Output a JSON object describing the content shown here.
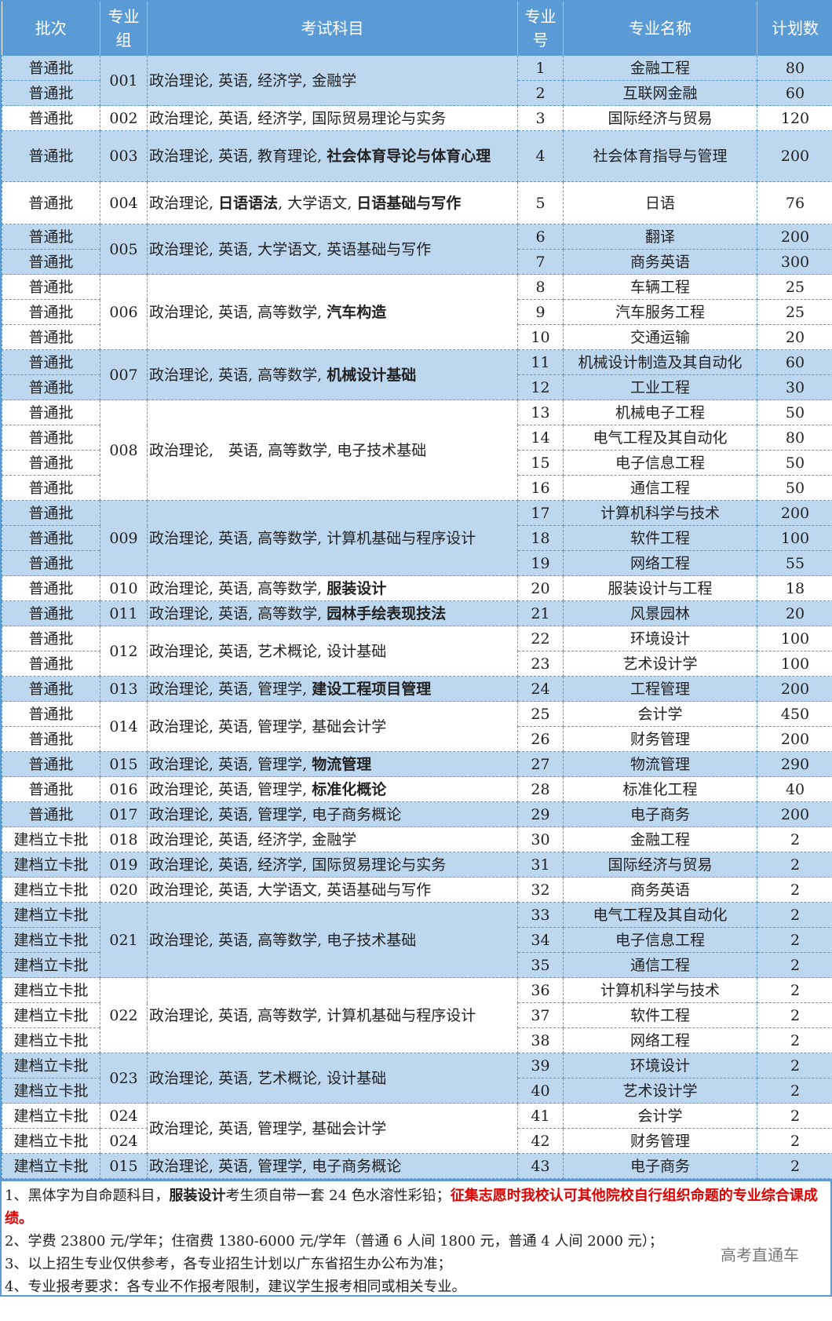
{
  "colors": {
    "header": "#5b9bd5",
    "band": "#bdd7ee",
    "highlight": "#e00000"
  },
  "headers": [
    "批次",
    "专业组",
    "考试科目",
    "专业号",
    "专业名称",
    "计划数"
  ],
  "groups": [
    {
      "code": "001",
      "subject": [
        {
          "t": "政治理论, 英语, 经济学, 金融学"
        }
      ],
      "rows": [
        {
          "batch": "普通批",
          "no": "1",
          "name": "金融工程",
          "plan": "80"
        },
        {
          "batch": "普通批",
          "no": "2",
          "name": "互联网金融",
          "plan": "60"
        }
      ]
    },
    {
      "code": "002",
      "subject": [
        {
          "t": "政治理论, 英语, 经济学, 国际贸易理论与实务"
        }
      ],
      "rows": [
        {
          "batch": "普通批",
          "no": "3",
          "name": "国际经济与贸易",
          "plan": "120"
        }
      ]
    },
    {
      "code": "003",
      "tall": "double",
      "subject": [
        {
          "t": "政治理论, 英语, 教育理论, "
        },
        {
          "t": "社会体育导论与体育心理",
          "b": true
        }
      ],
      "rows": [
        {
          "batch": "普通批",
          "no": "4",
          "name": "社会体育指导与管理",
          "plan": "200"
        }
      ]
    },
    {
      "code": "004",
      "tall": "medium",
      "subject": [
        {
          "t": "政治理论, "
        },
        {
          "t": "日语语法",
          "b": true
        },
        {
          "t": ", 大学语文, "
        },
        {
          "t": "日语基础与写作",
          "b": true
        }
      ],
      "rows": [
        {
          "batch": "普通批",
          "no": "5",
          "name": "日语",
          "plan": "76"
        }
      ]
    },
    {
      "code": "005",
      "subject": [
        {
          "t": "政治理论, 英语, 大学语文, 英语基础与写作"
        }
      ],
      "rows": [
        {
          "batch": "普通批",
          "no": "6",
          "name": "翻译",
          "plan": "200"
        },
        {
          "batch": "普通批",
          "no": "7",
          "name": "商务英语",
          "plan": "300"
        }
      ]
    },
    {
      "code": "006",
      "subject": [
        {
          "t": "政治理论, 英语, 高等数学, "
        },
        {
          "t": "汽车构造",
          "b": true
        }
      ],
      "rows": [
        {
          "batch": "普通批",
          "no": "8",
          "name": "车辆工程",
          "plan": "25"
        },
        {
          "batch": "普通批",
          "no": "9",
          "name": "汽车服务工程",
          "plan": "25"
        },
        {
          "batch": "普通批",
          "no": "10",
          "name": "交通运输",
          "plan": "20"
        }
      ]
    },
    {
      "code": "007",
      "subject": [
        {
          "t": "政治理论, 英语, 高等数学, "
        },
        {
          "t": "机械设计基础",
          "b": true
        }
      ],
      "rows": [
        {
          "batch": "普通批",
          "no": "11",
          "name": "机械设计制造及其自动化",
          "plan": "60"
        },
        {
          "batch": "普通批",
          "no": "12",
          "name": "工业工程",
          "plan": "30"
        }
      ]
    },
    {
      "code": "008",
      "subject": [
        {
          "t": "政治理论,　英语, 高等数学, 电子技术基础"
        }
      ],
      "rows": [
        {
          "batch": "普通批",
          "no": "13",
          "name": "机械电子工程",
          "plan": "50"
        },
        {
          "batch": "普通批",
          "no": "14",
          "name": "电气工程及其自动化",
          "plan": "80"
        },
        {
          "batch": "普通批",
          "no": "15",
          "name": "电子信息工程",
          "plan": "50"
        },
        {
          "batch": "普通批",
          "no": "16",
          "name": "通信工程",
          "plan": "50"
        }
      ]
    },
    {
      "code": "009",
      "subject": [
        {
          "t": "政治理论, 英语, 高等数学, 计算机基础与程序设计"
        }
      ],
      "rows": [
        {
          "batch": "普通批",
          "no": "17",
          "name": "计算机科学与技术",
          "plan": "200"
        },
        {
          "batch": "普通批",
          "no": "18",
          "name": "软件工程",
          "plan": "100"
        },
        {
          "batch": "普通批",
          "no": "19",
          "name": "网络工程",
          "plan": "55"
        }
      ]
    },
    {
      "code": "010",
      "subject": [
        {
          "t": "政治理论, 英语, 高等数学, "
        },
        {
          "t": "服装设计",
          "b": true
        }
      ],
      "rows": [
        {
          "batch": "普通批",
          "no": "20",
          "name": "服装设计与工程",
          "plan": "18"
        }
      ]
    },
    {
      "code": "011",
      "subject": [
        {
          "t": "政治理论, 英语, 高等数学, "
        },
        {
          "t": "园林手绘表现技法",
          "b": true
        }
      ],
      "rows": [
        {
          "batch": "普通批",
          "no": "21",
          "name": "风景园林",
          "plan": "20"
        }
      ]
    },
    {
      "code": "012",
      "subject": [
        {
          "t": "政治理论, 英语, 艺术概论, 设计基础"
        }
      ],
      "rows": [
        {
          "batch": "普通批",
          "no": "22",
          "name": "环境设计",
          "plan": "100"
        },
        {
          "batch": "普通批",
          "no": "23",
          "name": "艺术设计学",
          "plan": "100"
        }
      ]
    },
    {
      "code": "013",
      "subject": [
        {
          "t": "政治理论, 英语, 管理学, "
        },
        {
          "t": "建设工程项目管理",
          "b": true
        }
      ],
      "rows": [
        {
          "batch": "普通批",
          "no": "24",
          "name": "工程管理",
          "plan": "200"
        }
      ]
    },
    {
      "code": "014",
      "subject": [
        {
          "t": "政治理论, 英语, 管理学, 基础会计学"
        }
      ],
      "rows": [
        {
          "batch": "普通批",
          "no": "25",
          "name": "会计学",
          "plan": "450"
        },
        {
          "batch": "普通批",
          "no": "26",
          "name": "财务管理",
          "plan": "200"
        }
      ]
    },
    {
      "code": "015",
      "subject": [
        {
          "t": "政治理论, 英语, 管理学, "
        },
        {
          "t": "物流管理",
          "b": true
        }
      ],
      "rows": [
        {
          "batch": "普通批",
          "no": "27",
          "name": "物流管理",
          "plan": "290"
        }
      ]
    },
    {
      "code": "016",
      "subject": [
        {
          "t": "政治理论, 英语, 管理学, "
        },
        {
          "t": "标准化概论",
          "b": true
        }
      ],
      "rows": [
        {
          "batch": "普通批",
          "no": "28",
          "name": "标准化工程",
          "plan": "40"
        }
      ]
    },
    {
      "code": "017",
      "subject": [
        {
          "t": "政治理论, 英语, 管理学, 电子商务概论"
        }
      ],
      "rows": [
        {
          "batch": "普通批",
          "no": "29",
          "name": "电子商务",
          "plan": "200"
        }
      ]
    },
    {
      "code": "018",
      "subject": [
        {
          "t": "政治理论, 英语, 经济学, 金融学"
        }
      ],
      "rows": [
        {
          "batch": "建档立卡批",
          "no": "30",
          "name": "金融工程",
          "plan": "2"
        }
      ]
    },
    {
      "code": "019",
      "subject": [
        {
          "t": "政治理论, 英语, 经济学, 国际贸易理论与实务"
        }
      ],
      "rows": [
        {
          "batch": "建档立卡批",
          "no": "31",
          "name": "国际经济与贸易",
          "plan": "2"
        }
      ]
    },
    {
      "code": "020",
      "subject": [
        {
          "t": "政治理论, 英语, 大学语文, 英语基础与写作"
        }
      ],
      "rows": [
        {
          "batch": "建档立卡批",
          "no": "32",
          "name": "商务英语",
          "plan": "2"
        }
      ]
    },
    {
      "code": "021",
      "subject": [
        {
          "t": "政治理论, 英语, 高等数学, 电子技术基础"
        }
      ],
      "rows": [
        {
          "batch": "建档立卡批",
          "no": "33",
          "name": "电气工程及其自动化",
          "plan": "2"
        },
        {
          "batch": "建档立卡批",
          "no": "34",
          "name": "电子信息工程",
          "plan": "2"
        },
        {
          "batch": "建档立卡批",
          "no": "35",
          "name": "通信工程",
          "plan": "2"
        }
      ]
    },
    {
      "code": "022",
      "subject": [
        {
          "t": "政治理论, 英语, 高等数学, 计算机基础与程序设计"
        }
      ],
      "rows": [
        {
          "batch": "建档立卡批",
          "no": "36",
          "name": "计算机科学与技术",
          "plan": "2"
        },
        {
          "batch": "建档立卡批",
          "no": "37",
          "name": "软件工程",
          "plan": "2"
        },
        {
          "batch": "建档立卡批",
          "no": "38",
          "name": "网络工程",
          "plan": "2"
        }
      ]
    },
    {
      "code": "023",
      "subject": [
        {
          "t": "政治理论, 英语, 艺术概论, 设计基础"
        }
      ],
      "rows": [
        {
          "batch": "建档立卡批",
          "no": "39",
          "name": "环境设计",
          "plan": "2"
        },
        {
          "batch": "建档立卡批",
          "no": "40",
          "name": "艺术设计学",
          "plan": "2"
        }
      ]
    },
    {
      "code": "024",
      "split_code": true,
      "subject": [
        {
          "t": "政治理论, 英语, 管理学, 基础会计学"
        }
      ],
      "rows": [
        {
          "batch": "建档立卡批",
          "code": "024",
          "no": "41",
          "name": "会计学",
          "plan": "2"
        },
        {
          "batch": "建档立卡批",
          "code": "024",
          "no": "42",
          "name": "财务管理",
          "plan": "2"
        }
      ]
    },
    {
      "code": "015",
      "subject": [
        {
          "t": "政治理论, 英语, 管理学, 电子商务概论"
        }
      ],
      "rows": [
        {
          "batch": "建档立卡批",
          "no": "43",
          "name": "电子商务",
          "plan": "2"
        }
      ]
    }
  ],
  "notes": {
    "line1": [
      {
        "t": "1、黑体字为自命题科目，"
      },
      {
        "t": "服装设计",
        "b": true
      },
      {
        "t": "考生须自带一套 24 色水溶性彩铅；"
      },
      {
        "t": "征集志愿时我校认可其他院校自行组织命题的专业综合课成绩。",
        "red": true
      }
    ],
    "line2": "2、学费 23800 元/学年；住宿费 1380-6000 元/学年（普通 6 人间 1800 元，普通 4 人间 2000 元）；",
    "line3": "3、以上招生专业仅供参考，各专业招生计划以广东省招生办公布为准；",
    "line4": "4、专业报考要求：各专业不作报考限制，建议学生报考相同或相关专业。"
  },
  "watermark": "高考直通车"
}
